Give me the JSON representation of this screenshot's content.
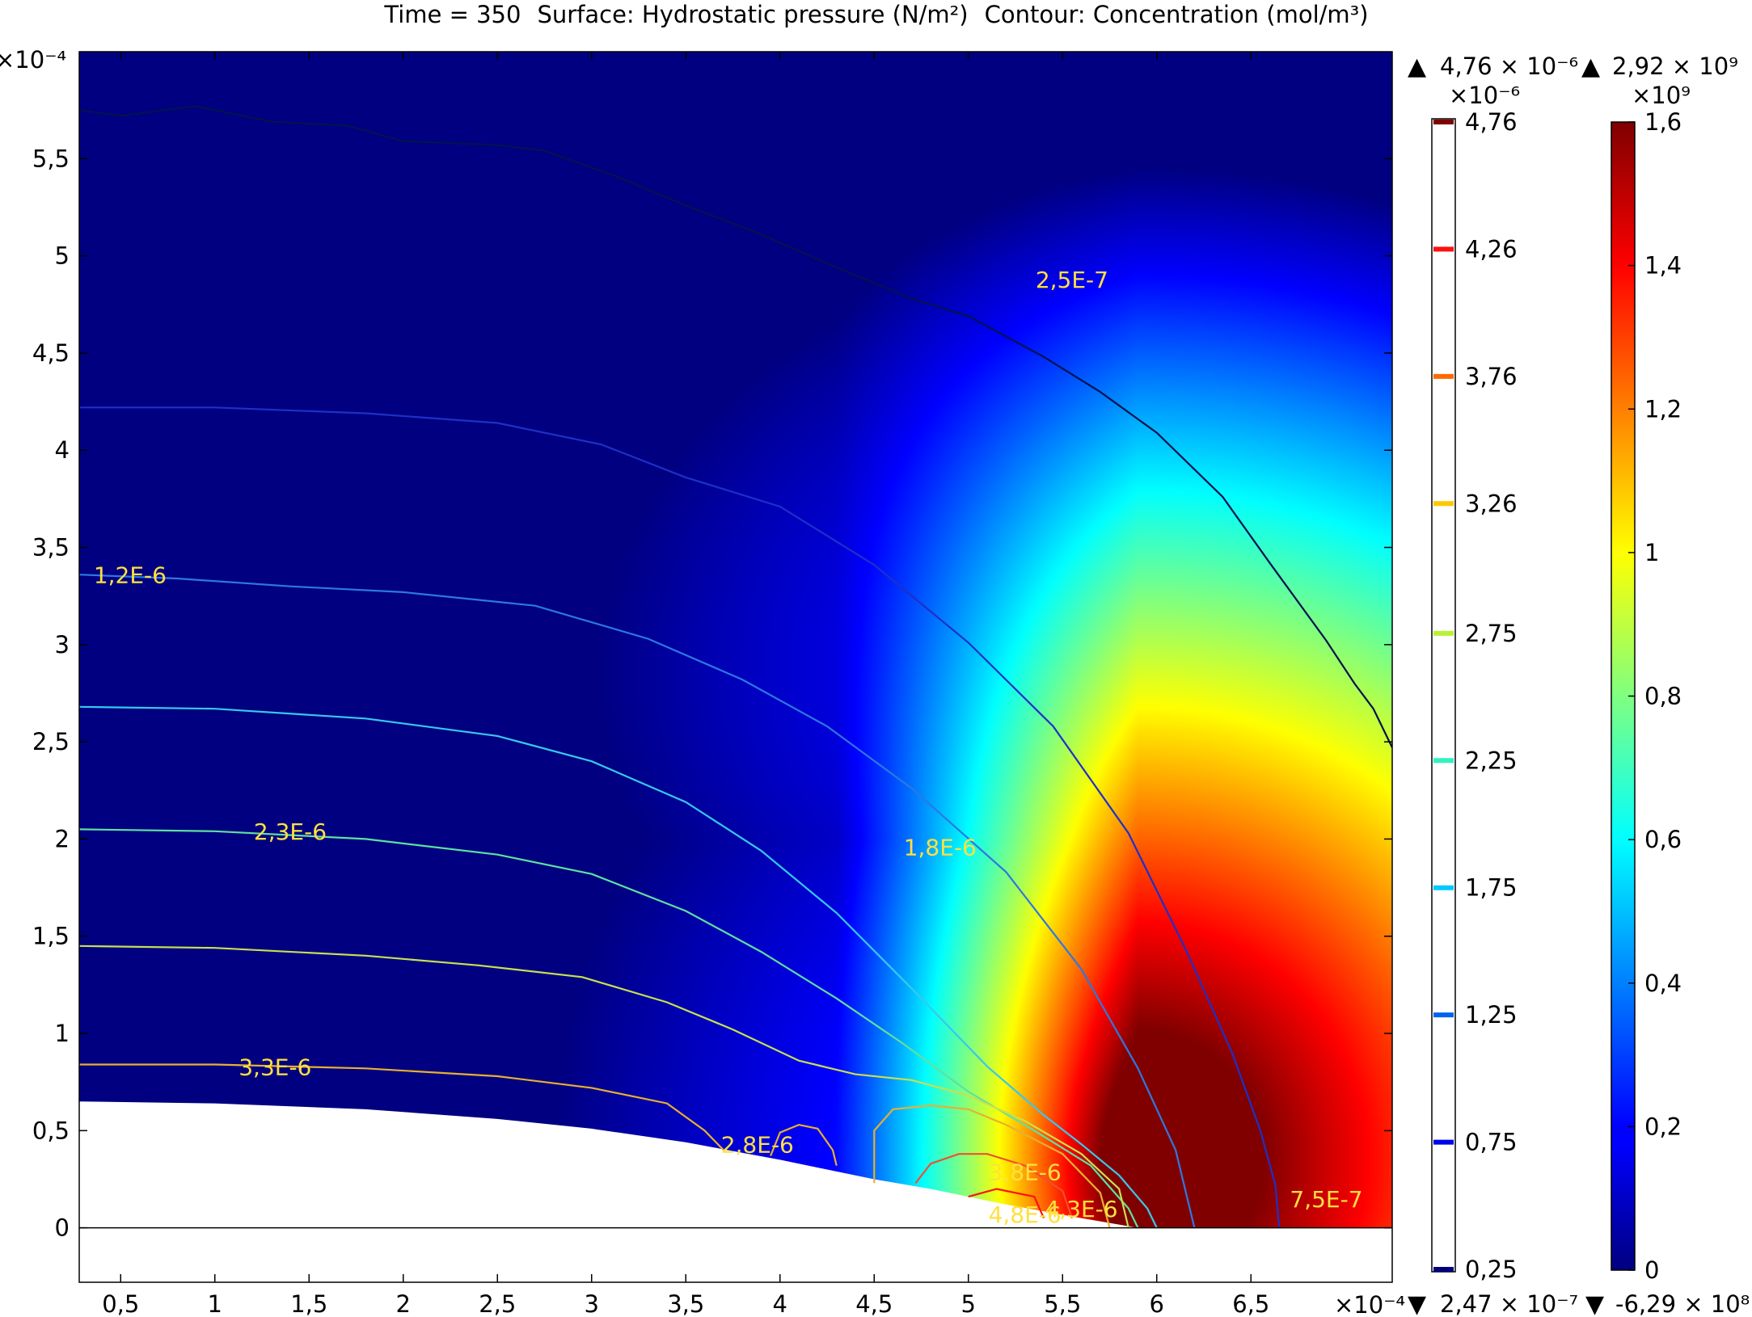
{
  "chart_data": {
    "type": "heatmap",
    "title": {
      "time_part": "Time = 350",
      "surface_part": "Surface: Hydrostatic pressure (N/m²)",
      "contour_part": "Contour: Concentration (mol/m³)"
    },
    "x_axis": {
      "range": [
        0.28,
        7.25
      ],
      "ticks": [
        "0,5",
        "1",
        "1,5",
        "2",
        "2,5",
        "3",
        "3,5",
        "4",
        "4,5",
        "5",
        "5,5",
        "6",
        "6,5"
      ],
      "tick_values": [
        0.5,
        1,
        1.5,
        2,
        2.5,
        3,
        3.5,
        4,
        4.5,
        5,
        5.5,
        6,
        6.5
      ],
      "exponent": "×10⁻⁴"
    },
    "y_axis": {
      "range": [
        -0.28,
        6.05
      ],
      "ticks": [
        "0",
        "0,5",
        "1",
        "1,5",
        "2",
        "2,5",
        "3",
        "3,5",
        "4",
        "4,5",
        "5",
        "5,5"
      ],
      "tick_values": [
        0,
        0.5,
        1,
        1.5,
        2,
        2.5,
        3,
        3.5,
        4,
        4.5,
        5,
        5.5
      ],
      "exponent": "×10⁻⁴"
    },
    "surface": {
      "name": "Hydrostatic pressure",
      "colormap": "jet",
      "max_text": "2,92 × 10⁹",
      "min_text": "-6,29 × 10⁸",
      "scale_exponent": "×10⁹",
      "scale_range": [
        0,
        1.6
      ],
      "scale_ticks": [
        "0",
        "0,2",
        "0,4",
        "0,6",
        "0,8",
        "1",
        "1,2",
        "1,4",
        "1,6"
      ],
      "scale_tick_values": [
        0,
        0.2,
        0.4,
        0.6,
        0.8,
        1.0,
        1.2,
        1.4,
        1.6
      ],
      "peak": [
        5.9,
        0.35
      ]
    },
    "contours": {
      "name": "Concentration",
      "max_text": "4,76 × 10⁻⁶",
      "min_text": "2,47 × 10⁻⁷",
      "scale_exponent": "×10⁻⁶",
      "levels": [
        "0,25",
        "0,75",
        "1,25",
        "1,75",
        "2,25",
        "2,75",
        "3,26",
        "3,76",
        "4,26",
        "4,76"
      ],
      "level_values": [
        0.25,
        0.75,
        1.25,
        1.75,
        2.25,
        2.75,
        3.26,
        3.76,
        4.26,
        4.76
      ],
      "level_colors": [
        "#00007f",
        "#0000ee",
        "#0064f0",
        "#00c8ff",
        "#31f2bf",
        "#b8f234",
        "#fdc800",
        "#ff6a00",
        "#ff1010",
        "#7f0000"
      ],
      "lines": [
        {
          "color": "#02124f",
          "points": [
            [
              0.28,
              5.75
            ],
            [
              0.5,
              5.72
            ],
            [
              0.9,
              5.77
            ],
            [
              1.3,
              5.69
            ],
            [
              1.7,
              5.67
            ],
            [
              2.0,
              5.59
            ],
            [
              2.5,
              5.57
            ],
            [
              2.75,
              5.54
            ],
            [
              3.1,
              5.42
            ],
            [
              3.5,
              5.26
            ],
            [
              3.9,
              5.11
            ],
            [
              4.3,
              4.94
            ],
            [
              4.7,
              4.78
            ],
            [
              5.0,
              4.69
            ],
            [
              5.4,
              4.48
            ],
            [
              5.7,
              4.3
            ],
            [
              6.0,
              4.09
            ],
            [
              6.35,
              3.76
            ],
            [
              6.6,
              3.42
            ],
            [
              6.9,
              3.02
            ],
            [
              7.05,
              2.8
            ],
            [
              7.15,
              2.67
            ],
            [
              7.25,
              2.47
            ]
          ]
        },
        {
          "color": "#1d30c8",
          "points": [
            [
              0.28,
              4.22
            ],
            [
              1.0,
              4.22
            ],
            [
              1.8,
              4.19
            ],
            [
              2.5,
              4.14
            ],
            [
              3.05,
              4.03
            ],
            [
              3.5,
              3.86
            ],
            [
              4.0,
              3.71
            ],
            [
              4.5,
              3.41
            ],
            [
              5.0,
              3.01
            ],
            [
              5.45,
              2.58
            ],
            [
              5.85,
              2.03
            ],
            [
              6.15,
              1.44
            ],
            [
              6.4,
              0.9
            ],
            [
              6.55,
              0.5
            ],
            [
              6.63,
              0.22
            ],
            [
              6.65,
              0.0
            ]
          ]
        },
        {
          "color": "#2d78e2",
          "points": [
            [
              0.28,
              3.36
            ],
            [
              0.8,
              3.34
            ],
            [
              1.4,
              3.3
            ],
            [
              2.0,
              3.27
            ],
            [
              2.7,
              3.2
            ],
            [
              3.3,
              3.03
            ],
            [
              3.8,
              2.82
            ],
            [
              4.25,
              2.58
            ],
            [
              4.7,
              2.26
            ],
            [
              5.2,
              1.83
            ],
            [
              5.6,
              1.33
            ],
            [
              5.9,
              0.82
            ],
            [
              6.1,
              0.4
            ],
            [
              6.2,
              0.0
            ]
          ]
        },
        {
          "color": "#37c8ee",
          "points": [
            [
              0.28,
              2.68
            ],
            [
              1.0,
              2.67
            ],
            [
              1.8,
              2.62
            ],
            [
              2.5,
              2.53
            ],
            [
              3.0,
              2.4
            ],
            [
              3.5,
              2.19
            ],
            [
              3.9,
              1.94
            ],
            [
              4.3,
              1.62
            ],
            [
              4.7,
              1.23
            ],
            [
              5.1,
              0.83
            ],
            [
              5.4,
              0.58
            ],
            [
              5.6,
              0.43
            ],
            [
              5.8,
              0.27
            ],
            [
              5.95,
              0.1
            ],
            [
              6.0,
              0.0
            ]
          ]
        },
        {
          "color": "#5fe0a0",
          "points": [
            [
              0.28,
              2.05
            ],
            [
              1.0,
              2.04
            ],
            [
              1.8,
              2.0
            ],
            [
              2.5,
              1.92
            ],
            [
              3.0,
              1.82
            ],
            [
              3.5,
              1.63
            ],
            [
              3.9,
              1.42
            ],
            [
              4.3,
              1.18
            ],
            [
              4.65,
              0.95
            ],
            [
              5.0,
              0.7
            ],
            [
              5.35,
              0.5
            ],
            [
              5.65,
              0.32
            ],
            [
              5.85,
              0.1
            ],
            [
              5.9,
              0.0
            ]
          ]
        },
        {
          "color": "#c8e050",
          "points": [
            [
              0.28,
              1.45
            ],
            [
              1.0,
              1.44
            ],
            [
              1.8,
              1.4
            ],
            [
              2.4,
              1.35
            ],
            [
              2.95,
              1.29
            ],
            [
              3.4,
              1.16
            ],
            [
              3.75,
              1.02
            ],
            [
              4.1,
              0.86
            ],
            [
              4.4,
              0.79
            ],
            [
              4.7,
              0.76
            ],
            [
              5.0,
              0.68
            ],
            [
              5.3,
              0.55
            ],
            [
              5.6,
              0.38
            ],
            [
              5.8,
              0.2
            ],
            [
              5.85,
              0.0
            ]
          ]
        },
        {
          "color": "#e8b030",
          "points": [
            [
              0.28,
              0.84
            ],
            [
              1.0,
              0.84
            ],
            [
              1.8,
              0.82
            ],
            [
              2.5,
              0.78
            ],
            [
              3.0,
              0.72
            ],
            [
              3.4,
              0.64
            ],
            [
              3.6,
              0.5
            ],
            [
              3.7,
              0.4
            ]
          ]
        },
        {
          "color": "#e8b030",
          "points": [
            [
              3.95,
              0.37
            ],
            [
              4.0,
              0.49
            ],
            [
              4.1,
              0.53
            ],
            [
              4.2,
              0.51
            ],
            [
              4.28,
              0.4
            ],
            [
              4.3,
              0.32
            ]
          ]
        },
        {
          "color": "#e8b030",
          "points": [
            [
              4.5,
              0.23
            ],
            [
              4.5,
              0.5
            ],
            [
              4.6,
              0.61
            ],
            [
              4.8,
              0.63
            ],
            [
              5.0,
              0.61
            ],
            [
              5.2,
              0.53
            ],
            [
              5.5,
              0.38
            ],
            [
              5.7,
              0.18
            ],
            [
              5.75,
              0.0
            ]
          ]
        },
        {
          "color": "#f05030",
          "points": [
            [
              4.72,
              0.23
            ],
            [
              4.8,
              0.33
            ],
            [
              4.95,
              0.38
            ],
            [
              5.1,
              0.38
            ],
            [
              5.3,
              0.32
            ],
            [
              5.5,
              0.19
            ],
            [
              5.55,
              0.05
            ]
          ]
        },
        {
          "color": "#ff1010",
          "points": [
            [
              5.0,
              0.16
            ],
            [
              5.15,
              0.2
            ],
            [
              5.35,
              0.16
            ],
            [
              5.4,
              0.05
            ]
          ]
        }
      ],
      "labels": [
        {
          "text": "2,5E-7",
          "x": 5.55,
          "y": 4.87
        },
        {
          "text": "1,2E-6",
          "x": 0.55,
          "y": 3.35
        },
        {
          "text": "2,3E-6",
          "x": 1.4,
          "y": 2.03
        },
        {
          "text": "1,8E-6",
          "x": 4.85,
          "y": 1.95
        },
        {
          "text": "3,3E-6",
          "x": 1.32,
          "y": 0.82
        },
        {
          "text": "2,8E-6",
          "x": 3.88,
          "y": 0.42
        },
        {
          "text": "3,8E-6",
          "x": 5.3,
          "y": 0.28
        },
        {
          "text": "4,8E-6",
          "x": 5.3,
          "y": 0.06
        },
        {
          "text": "4,3E-6",
          "x": 5.6,
          "y": 0.09
        },
        {
          "text": "7,5E-7",
          "x": 6.9,
          "y": 0.14
        }
      ]
    },
    "mask_boundary": [
      [
        0.28,
        0.65
      ],
      [
        1.0,
        0.64
      ],
      [
        1.8,
        0.61
      ],
      [
        2.5,
        0.56
      ],
      [
        3.0,
        0.51
      ],
      [
        3.5,
        0.44
      ],
      [
        4.0,
        0.35
      ],
      [
        4.5,
        0.25
      ],
      [
        4.8,
        0.2
      ],
      [
        5.2,
        0.12
      ],
      [
        5.6,
        0.05
      ],
      [
        5.9,
        0.0
      ]
    ]
  }
}
